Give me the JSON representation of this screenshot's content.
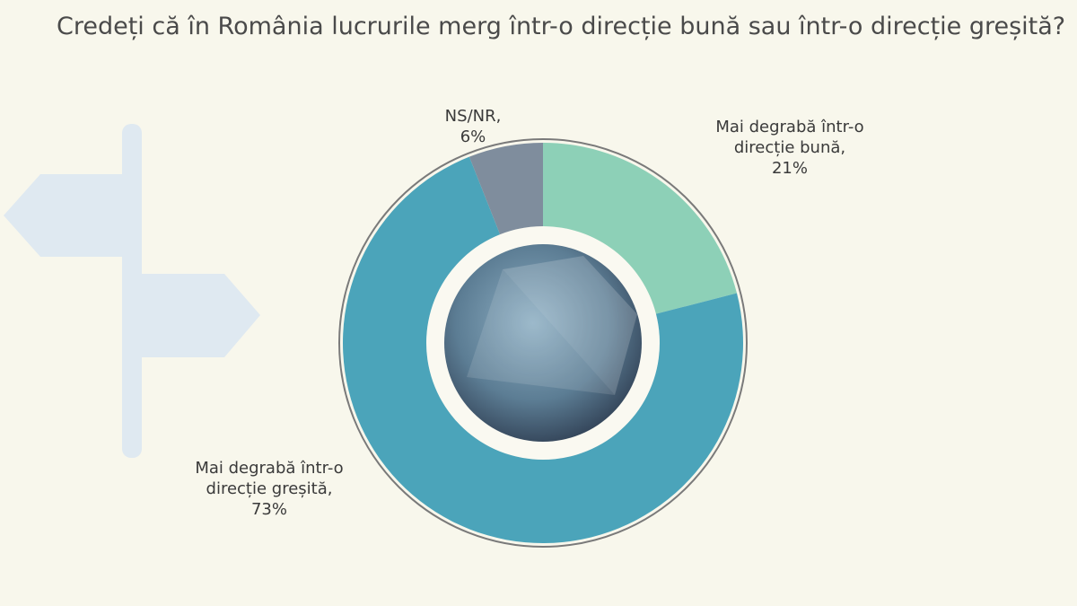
{
  "chart_data": {
    "type": "donut",
    "title": "Credeți că în România lucrurile merg într-o direcție bună sau într-o direcție greșită?",
    "categories": [
      "Mai degrabă într-o direcție bună,",
      "Mai degrabă într-o direcție greșită,",
      "NS/NR,"
    ],
    "values": [
      21,
      73,
      6
    ],
    "value_labels": [
      "21%",
      "73%",
      "6%"
    ],
    "colors": [
      "#8dd0b7",
      "#4ba4ba",
      "#7f8d9d"
    ]
  }
}
